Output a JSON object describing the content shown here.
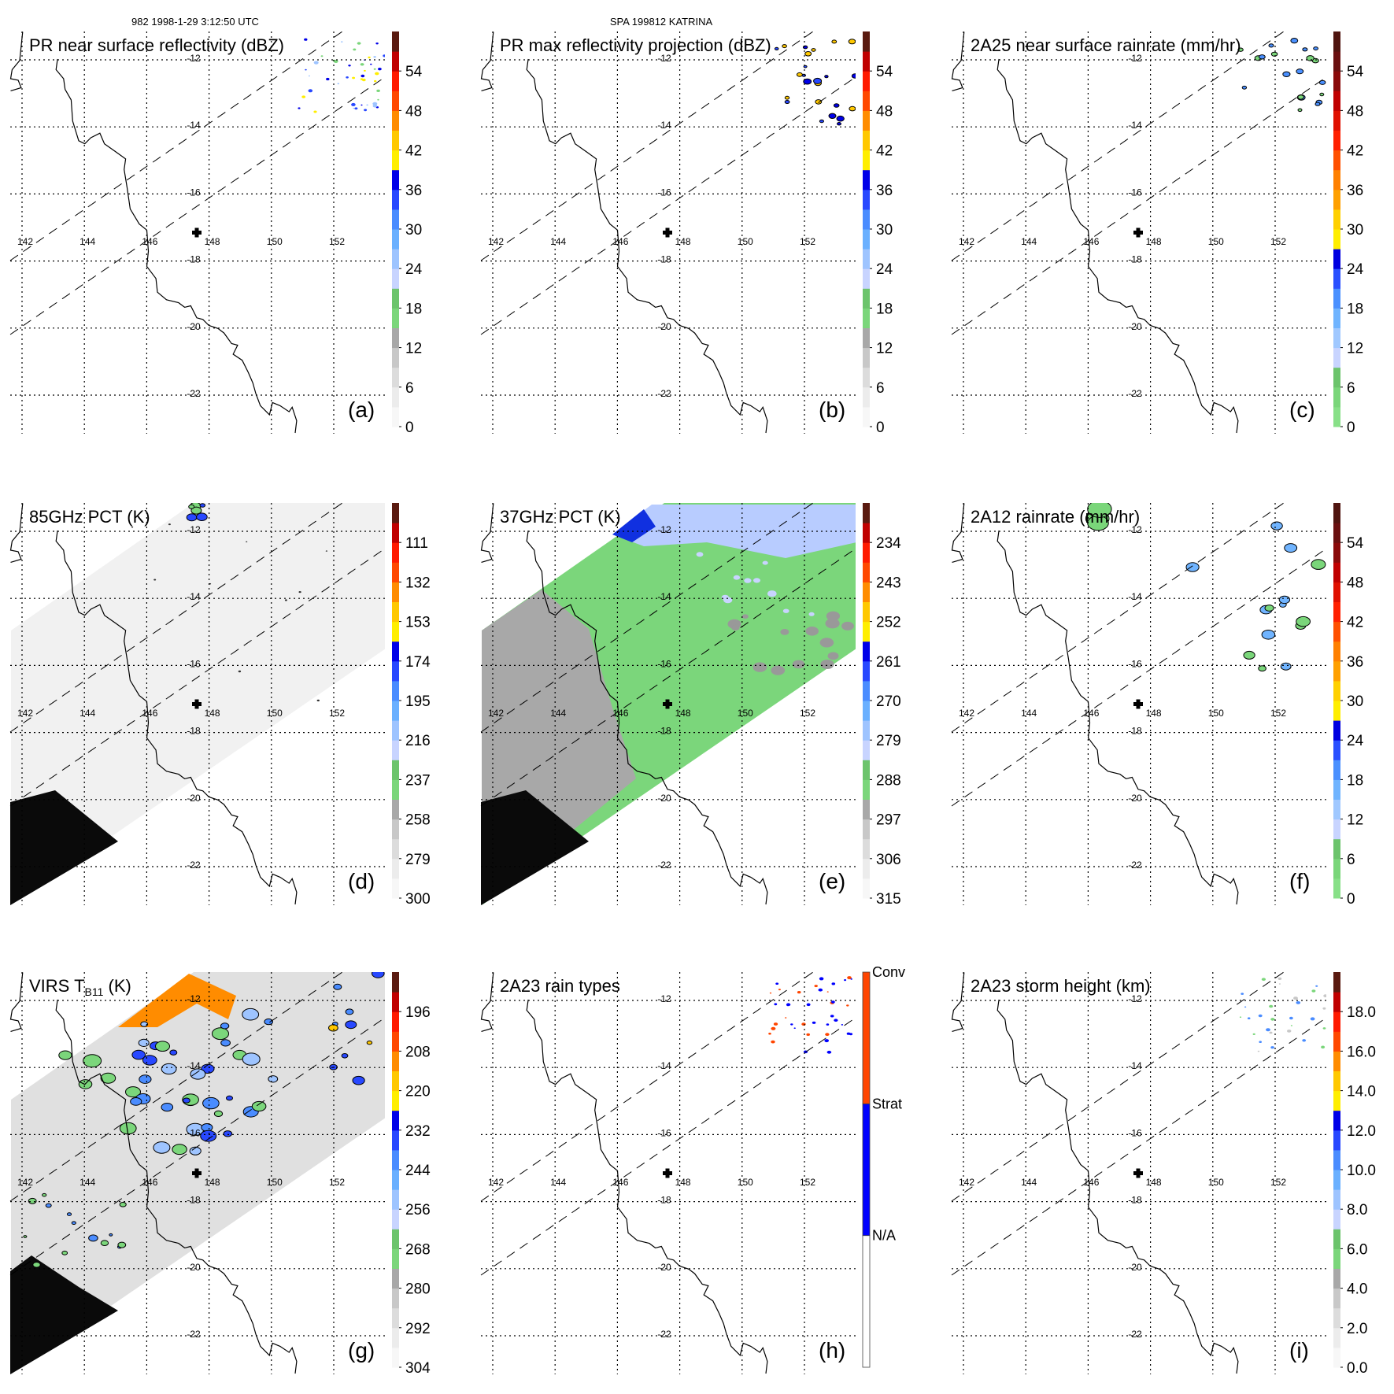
{
  "header": {
    "left": "982 1998-1-29 3:12:50 UTC",
    "center": "SPA 199812 KATRINA"
  },
  "lon_labels": [
    "142",
    "144",
    "146",
    "148",
    "150",
    "152"
  ],
  "lat_labels": [
    "-12",
    "-14",
    "-16",
    "-18",
    "-20",
    "-22"
  ],
  "colorscales": {
    "reflectivity": [
      "#f7f7f7",
      "#ececec",
      "#dcdcdc",
      "#c8c8c8",
      "#a8a8a8",
      "#7bd67b",
      "#6cc46c",
      "#c8d4ff",
      "#9ec4ff",
      "#6ab0ff",
      "#4a8cff",
      "#2848ff",
      "#0000e8",
      "#ffee00",
      "#ffc800",
      "#ff8c00",
      "#ff4800",
      "#ff1a00",
      "#c00000",
      "#5a1a10"
    ],
    "rain": [
      "#88e088",
      "#7ad67a",
      "#6cc46c",
      "#c8d4ff",
      "#a0c8ff",
      "#70b4ff",
      "#4a90ff",
      "#2a50ff",
      "#0000e0",
      "#ffee00",
      "#ffd000",
      "#ffa000",
      "#ff8000",
      "#ff5000",
      "#ff2000",
      "#e01000",
      "#c00000",
      "#8a0a0a",
      "#6a1010",
      "#501510"
    ],
    "raintype": [
      "#ffffff",
      "#0000ff",
      "#ff4500"
    ]
  },
  "panels": [
    {
      "id": "a",
      "title": "PR near surface reflectivity (dBZ)",
      "letter": "(a)",
      "scale": "reflectivity",
      "colorbar_labels": [
        "0",
        "6",
        "12",
        "18",
        "24",
        "30",
        "36",
        "42",
        "48",
        "54"
      ]
    },
    {
      "id": "b",
      "title": "PR max reflectivity projection (dBZ)",
      "letter": "(b)",
      "scale": "reflectivity",
      "colorbar_labels": [
        "0",
        "6",
        "12",
        "18",
        "24",
        "30",
        "36",
        "42",
        "48",
        "54"
      ]
    },
    {
      "id": "c",
      "title": "2A25 near surface rainrate (mm/hr)",
      "letter": "(c)",
      "scale": "rain",
      "colorbar_labels": [
        "0",
        "6",
        "12",
        "18",
        "24",
        "30",
        "36",
        "42",
        "48",
        "54"
      ]
    },
    {
      "id": "d",
      "title": "85GHz PCT (K)",
      "letter": "(d)",
      "scale": "reflectivity",
      "colorbar_labels": [
        "300",
        "279",
        "258",
        "237",
        "216",
        "195",
        "174",
        "153",
        "132",
        "111"
      ]
    },
    {
      "id": "e",
      "title": "37GHz PCT (K)",
      "letter": "(e)",
      "scale": "reflectivity",
      "colorbar_labels": [
        "315",
        "306",
        "297",
        "288",
        "279",
        "270",
        "261",
        "252",
        "243",
        "234"
      ]
    },
    {
      "id": "f",
      "title": "2A12 rainrate (mm/hr)",
      "letter": "(f)",
      "scale": "rain",
      "colorbar_labels": [
        "0",
        "6",
        "12",
        "18",
        "24",
        "30",
        "36",
        "42",
        "48",
        "54"
      ]
    },
    {
      "id": "g",
      "title": "VIRS T",
      "title_sub": "B11",
      "title_tail": " (K)",
      "letter": "(g)",
      "scale": "reflectivity",
      "colorbar_labels": [
        "304",
        "292",
        "280",
        "268",
        "256",
        "244",
        "232",
        "220",
        "208",
        "196"
      ]
    },
    {
      "id": "h",
      "title": "2A23 rain types",
      "letter": "(h)",
      "scale": "raintype",
      "category_labels": [
        "N/A",
        "Strat",
        "Conv"
      ]
    },
    {
      "id": "i",
      "title": "2A23 storm height (km)",
      "letter": "(i)",
      "scale": "reflectivity",
      "colorbar_labels": [
        "0.0",
        "2.0",
        "4.0",
        "6.0",
        "8.0",
        "10.0",
        "12.0",
        "14.0",
        "16.0",
        "18.0"
      ]
    }
  ]
}
